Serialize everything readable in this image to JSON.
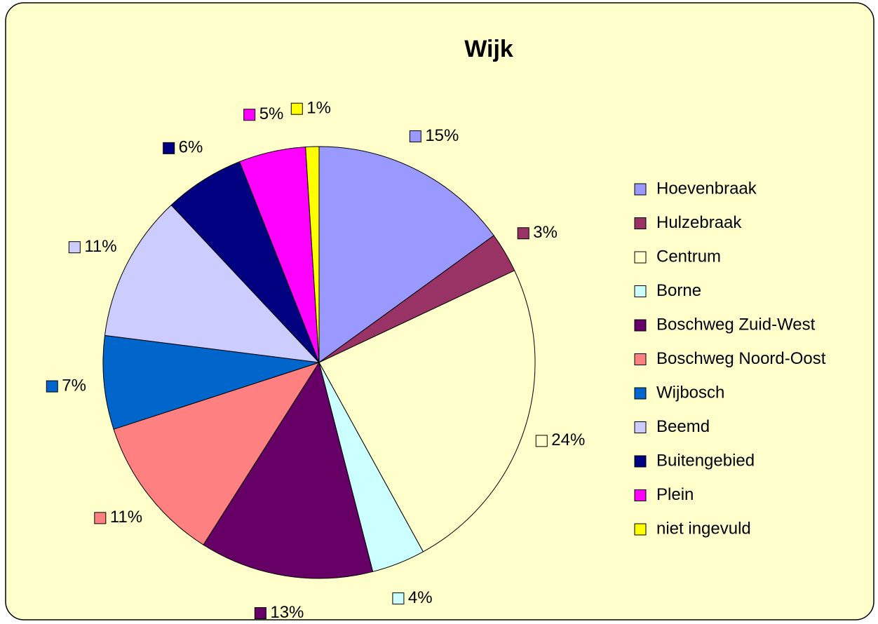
{
  "chart_data": {
    "type": "pie",
    "title": "Wijk",
    "categories": [
      "Hoevenbraak",
      "Hulzebraak",
      "Centrum",
      "Borne",
      "Boschweg Zuid-West",
      "Boschweg Noord-Oost",
      "Wijbosch",
      "Beemd",
      "Buitengebied",
      "Plein",
      "niet ingevuld"
    ],
    "values": [
      15,
      3,
      24,
      4,
      13,
      11,
      7,
      11,
      6,
      5,
      1
    ],
    "value_labels": [
      "15%",
      "3%",
      "24%",
      "4%",
      "13%",
      "11%",
      "7%",
      "11%",
      "6%",
      "5%",
      "1%"
    ],
    "colors": [
      "#9999ff",
      "#993366",
      "#ffffcc",
      "#ccffff",
      "#660066",
      "#ff8080",
      "#0066cc",
      "#ccccff",
      "#000080",
      "#ff00ff",
      "#ffff00"
    ],
    "legend": "right"
  }
}
